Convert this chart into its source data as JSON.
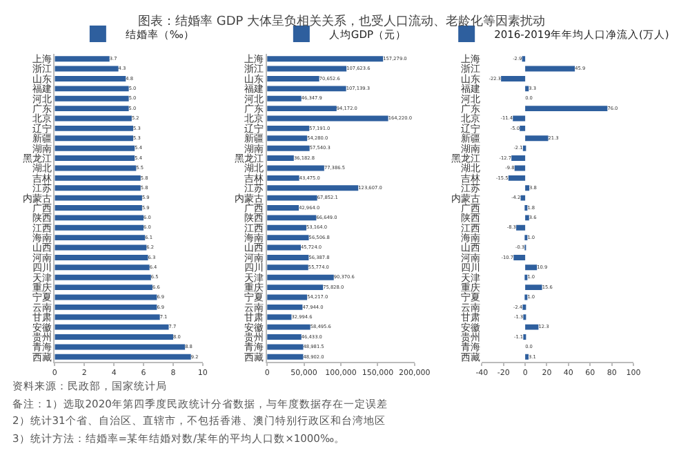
{
  "chart_data": [
    {
      "type": "bar",
      "orientation": "horizontal",
      "title": "图表：结婚率 GDP 大体呈负相关关系，也受人口流动、老龄化等因素扰动",
      "categories": [
        "上海",
        "浙江",
        "山东",
        "福建",
        "河北",
        "广东",
        "北京",
        "辽宁",
        "新疆",
        "湖南",
        "黑龙江",
        "湖北",
        "吉林",
        "江苏",
        "内蒙古",
        "广西",
        "陕西",
        "江西",
        "海南",
        "山西",
        "河南",
        "四川",
        "天津",
        "重庆",
        "宁夏",
        "云南",
        "甘肃",
        "安徽",
        "贵州",
        "青海",
        "西藏"
      ],
      "series": [
        {
          "name": "结婚率（‰）",
          "color": "#2e5f9e",
          "values": [
            3.7,
            4.3,
            4.8,
            5.0,
            5.0,
            5.0,
            5.2,
            5.3,
            5.3,
            5.4,
            5.4,
            5.5,
            5.8,
            5.8,
            5.9,
            5.9,
            6.0,
            6.0,
            6.1,
            6.2,
            6.3,
            6.4,
            6.5,
            6.6,
            6.9,
            6.9,
            7.1,
            7.7,
            8.0,
            8.8,
            9.2
          ],
          "value_labels": [
            "3.7",
            "4.3",
            "4.8",
            "5.0",
            "5.0",
            "5.0",
            "5.2",
            "5.3",
            "5.3",
            "5.4",
            "5.4",
            "5.5",
            "5.8",
            "5.8",
            "5.9",
            "5.9",
            "6.0",
            "6.0",
            "6.1",
            "6.2",
            "6.3",
            "6.4",
            "6.5",
            "6.6",
            "6.9",
            "6.9",
            "7.1",
            "7.7",
            "8.0",
            "8.8",
            "9.2"
          ]
        }
      ],
      "xlim": [
        0,
        10
      ],
      "xticks": [
        0,
        2,
        4,
        6,
        8,
        10
      ],
      "legend": "top right",
      "grid": false,
      "annotations": [
        "资料来源：民政部，国家统计局",
        "备注：1）选取2020年第四季度民政统计分省数据，与年度数据存在一定误差",
        "2）统计31个省、自治区、直辖市，不包括香港、澳门特别行政区和台湾地区",
        "3）统计方法：结婚率=某年结婚对数/某年的平均人口数×1000‰。"
      ]
    },
    {
      "type": "bar",
      "orientation": "horizontal",
      "categories": [
        "上海",
        "浙江",
        "山东",
        "福建",
        "河北",
        "广东",
        "北京",
        "辽宁",
        "新疆",
        "湖南",
        "黑龙江",
        "湖北",
        "吉林",
        "江苏",
        "内蒙古",
        "广西",
        "陕西",
        "江西",
        "海南",
        "山西",
        "河南",
        "四川",
        "天津",
        "重庆",
        "宁夏",
        "云南",
        "甘肃",
        "安徽",
        "贵州",
        "青海",
        "西藏"
      ],
      "series": [
        {
          "name": "人均GDP（元）",
          "color": "#2e5f9e",
          "values": [
            157279.0,
            107623.6,
            70652.6,
            107139.3,
            46347.9,
            94172.0,
            164220.0,
            57191.0,
            54280.0,
            57540.3,
            36182.8,
            77386.5,
            43475.0,
            123607.0,
            67852.1,
            42964.0,
            66649.0,
            53164.0,
            56506.8,
            45724.0,
            56387.8,
            55774.0,
            90370.6,
            75828.0,
            54217.0,
            47944.0,
            32994.6,
            58495.6,
            46433.0,
            48981.5,
            48902.0
          ],
          "value_labels": [
            "157,279.0",
            "107,623.6",
            "70,652.6",
            "107,139.3",
            "46,347.9",
            "94,172.0",
            "164,220.0",
            "57,191.0",
            "54,280.0",
            "57,540.3",
            "36,182.8",
            "77,386.5",
            "43,475.0",
            "123,607.0",
            "67,852.1",
            "42,964.0",
            "66,649.0",
            "53,164.0",
            "56,506.8",
            "45,724.0",
            "56,387.8",
            "55,774.0",
            "90,370.6",
            "75,828.0",
            "54,217.0",
            "47,944.0",
            "32,994.6",
            "58,495.6",
            "46,433.0",
            "48,981.5",
            "48,902.0"
          ]
        }
      ],
      "xlim": [
        0,
        200000
      ],
      "xticks": [
        0,
        {
          "value": 50000,
          "label": "50,000"
        },
        {
          "value": 100000,
          "label": "100,000"
        },
        {
          "value": 150000,
          "label": "150,000"
        },
        {
          "value": 200000,
          "label": "200,000"
        }
      ],
      "legend": "top right",
      "grid": false
    },
    {
      "type": "bar",
      "orientation": "horizontal",
      "categories": [
        "上海",
        "浙江",
        "山东",
        "福建",
        "河北",
        "广东",
        "北京",
        "辽宁",
        "新疆",
        "湖南",
        "黑龙江",
        "湖北",
        "吉林",
        "江苏",
        "内蒙古",
        "广西",
        "陕西",
        "江西",
        "海南",
        "山西",
        "河南",
        "四川",
        "天津",
        "重庆",
        "宁夏",
        "云南",
        "甘肃",
        "安徽",
        "贵州",
        "青海",
        "西藏"
      ],
      "series": [
        {
          "name": "2016-2019年年均人口净流入(万人)",
          "color": "#2e5f9e",
          "values": [
            -2.9,
            45.9,
            -22.3,
            3.3,
            0.0,
            76.0,
            -11.4,
            -5.0,
            21.3,
            -2.1,
            -12.7,
            -9.8,
            -15.5,
            3.8,
            -4.2,
            1.8,
            3.6,
            -8.3,
            1.0,
            -0.3,
            -10.7,
            10.9,
            1.0,
            15.6,
            1.0,
            -2.4,
            -1.3,
            12.3,
            -1.1,
            0.0,
            3.1
          ],
          "value_labels": [
            "-2.9",
            "45.9",
            "-22.3",
            "3.3",
            "0.0",
            "76.0",
            "-11.4",
            "-5.0",
            "21.3",
            "-2.1",
            "-12.7",
            "-9.8",
            "-15.5",
            "3.8",
            "-4.2",
            "1.8",
            "3.6",
            "-8.3",
            "1.0",
            "-0.3",
            "-10.7",
            "10.9",
            "1.0",
            "15.6",
            "1.0",
            "-2.4",
            "-1.3",
            "12.3",
            "-1.1",
            "0.0",
            "3.1"
          ]
        }
      ],
      "xlim": [
        -40,
        100
      ],
      "xticks": [
        -40,
        -20,
        0,
        20,
        40,
        60,
        80,
        100
      ],
      "legend": "top",
      "grid": false
    }
  ]
}
